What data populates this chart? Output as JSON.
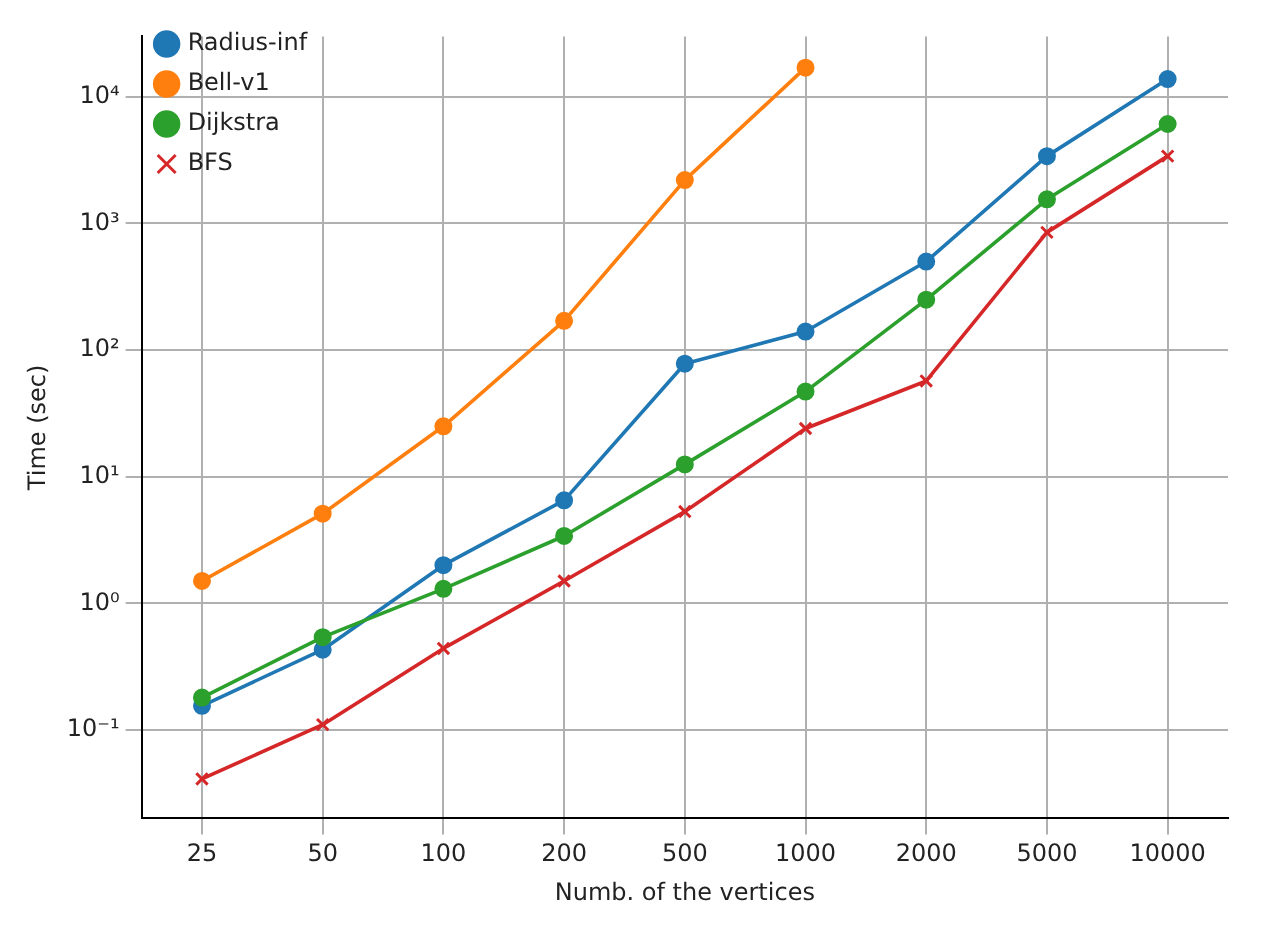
{
  "chart_data": {
    "type": "line",
    "xlabel": "Numb. of the vertices",
    "ylabel": "Time (sec)",
    "categories": [
      "25",
      "50",
      "100",
      "200",
      "500",
      "1000",
      "2000",
      "5000",
      "10000"
    ],
    "series": [
      {
        "name": "Radius-inf",
        "color": "#1f77b4",
        "marker": "circle",
        "values": [
          0.155,
          0.43,
          2.0,
          6.5,
          78,
          140,
          500,
          3400,
          13800
        ]
      },
      {
        "name": "Bell-v1",
        "color": "#ff7f0e",
        "marker": "circle",
        "values": [
          1.5,
          5.1,
          25,
          170,
          2200,
          17000,
          null,
          null,
          null
        ]
      },
      {
        "name": "Dijkstra",
        "color": "#2ca02c",
        "marker": "circle",
        "values": [
          0.18,
          0.54,
          1.3,
          3.4,
          12.5,
          47,
          250,
          1550,
          6100
        ]
      },
      {
        "name": "BFS",
        "color": "#d62728",
        "marker": "cross",
        "values": [
          0.041,
          0.11,
          0.44,
          1.5,
          5.3,
          24,
          57,
          850,
          3400
        ]
      }
    ],
    "log": "y",
    "ylim": [
      0.02,
      30000
    ],
    "yticks": [
      {
        "value": 0.1,
        "label": "10⁻¹"
      },
      {
        "value": 1,
        "label": "10⁰"
      },
      {
        "value": 10,
        "label": "10¹"
      },
      {
        "value": 100,
        "label": "10²"
      },
      {
        "value": 1000,
        "label": "10³"
      },
      {
        "value": 10000,
        "label": "10⁴"
      }
    ],
    "grid": true,
    "legend": "top left",
    "line_style": "solid"
  }
}
